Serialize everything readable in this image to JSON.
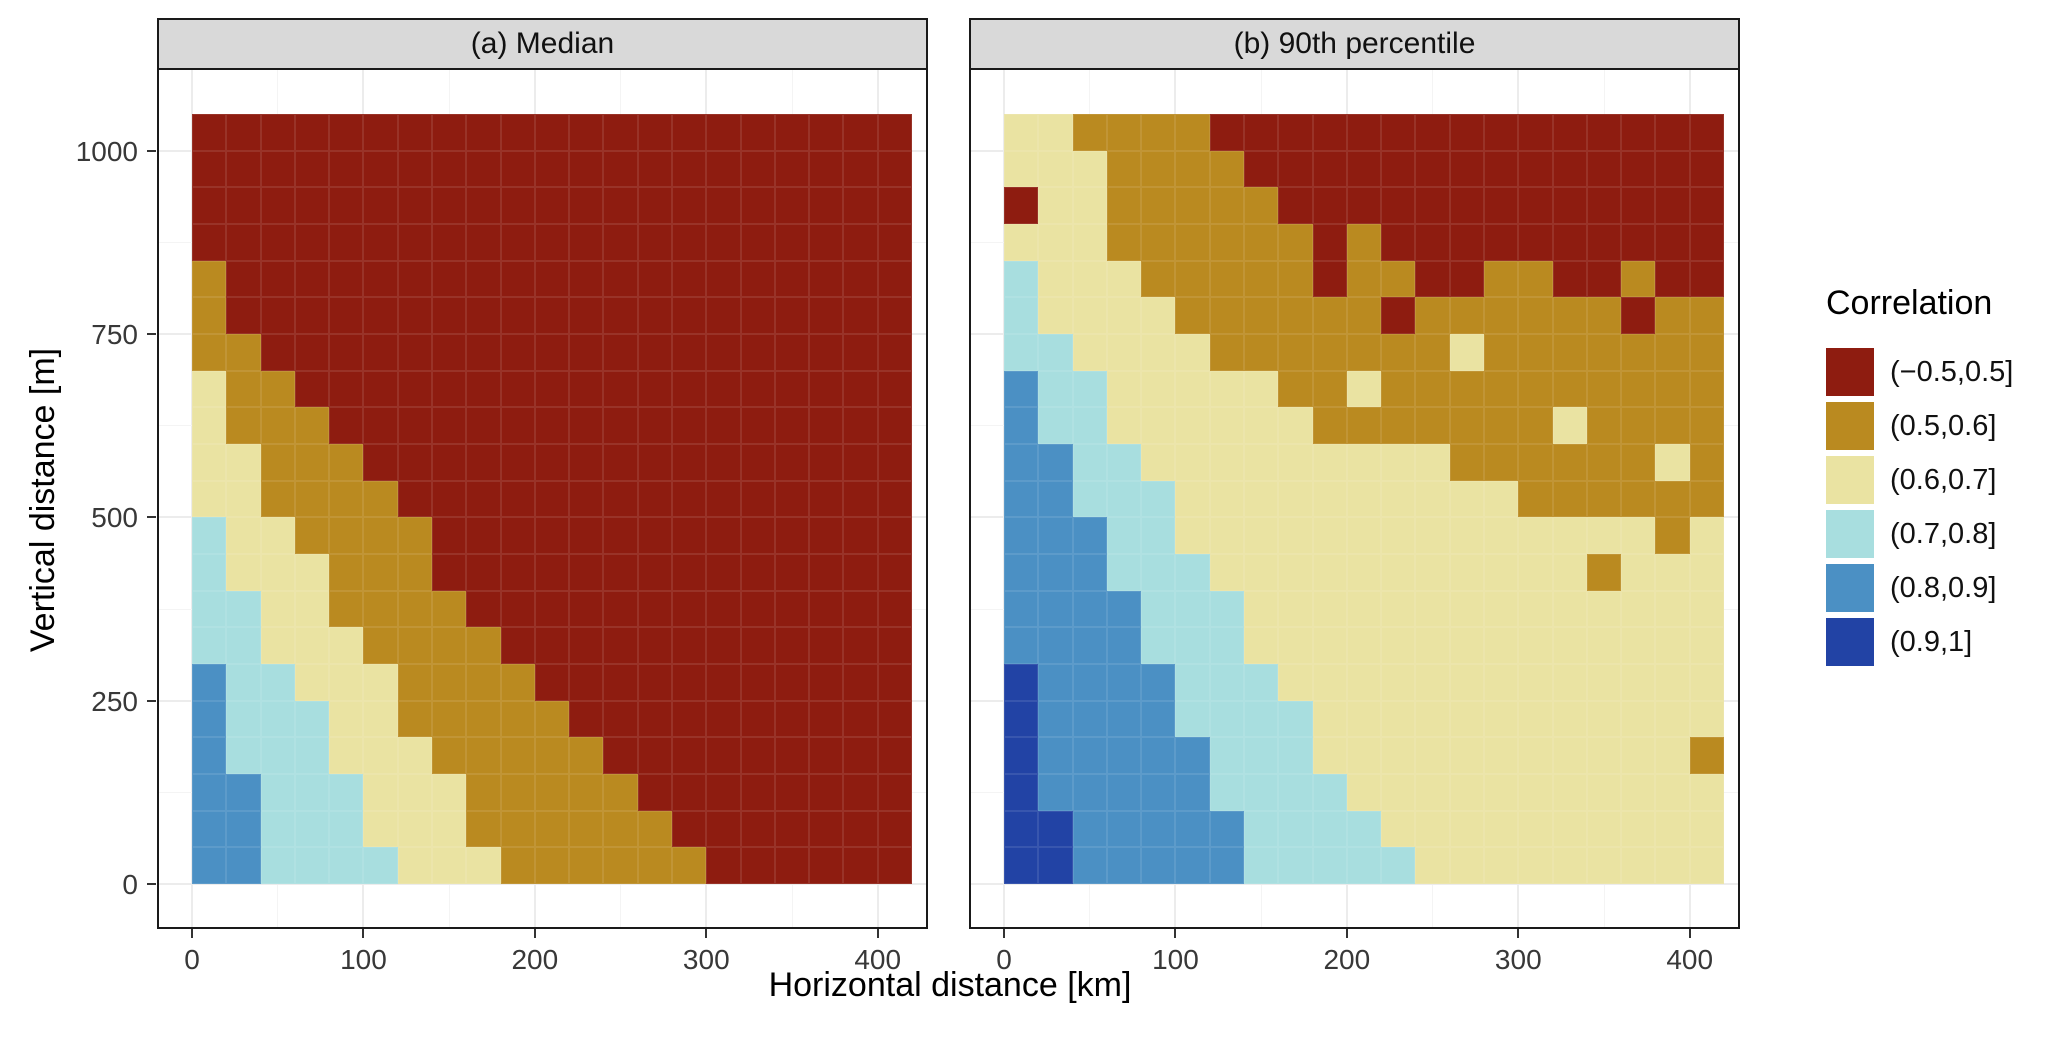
{
  "chart_data": {
    "type": "heatmap",
    "title": "",
    "x": {
      "label": "Horizontal distance [km]",
      "ticks": [
        0,
        100,
        200,
        300,
        400
      ],
      "minor_ticks": [
        50,
        150,
        250,
        350
      ],
      "range": [
        0,
        420
      ],
      "bin_width_km": 20
    },
    "y": {
      "label": "Vertical distance [m]",
      "ticks": [
        0,
        250,
        500,
        750,
        1000
      ],
      "minor_ticks": [
        125,
        375,
        625,
        875
      ],
      "range": [
        0,
        1050
      ],
      "bin_height_m": 50
    },
    "legend": {
      "title": "Correlation",
      "position": "right",
      "bins": [
        {
          "label": "(−0.5,0.5]",
          "color": "#8E1C10"
        },
        {
          "label": "(0.5,0.6]",
          "color": "#BA8A20"
        },
        {
          "label": "(0.6,0.7]",
          "color": "#EAE3A2"
        },
        {
          "label": "(0.7,0.8]",
          "color": "#A8DEDF"
        },
        {
          "label": "(0.8,0.9]",
          "color": "#4B90C4"
        },
        {
          "label": "(0.9,1]",
          "color": "#2243A5"
        }
      ]
    },
    "encoding_note": "Each facet grid is 21 columns (x bins of 20 km, 0-420) by 21 rows (y bins of 50 m, 0-1050). Row strings are listed bottom (0 m) to top (1050 m); each character is the legend bin index 0-5 for that tile.",
    "facets": [
      {
        "title": "(a) Median",
        "grid_rows_bottom_to_top": [
          "443333222111111000000",
          "443332221111110000000",
          "443332221111100000000",
          "433322211111000000000",
          "433322111110000000000",
          "433222111100000000000",
          "332221111000000000000",
          "332211110000000000000",
          "322211100000000000000",
          "322111100000000000000",
          "221111000000000000000",
          "221110000000000000000",
          "211100000000000000000",
          "211000000000000000000",
          "110000000000000000000",
          "100000000000000000000",
          "100000000000000000000",
          "000000000000000000000",
          "000000000000000000000",
          "000000000000000000000",
          "000000000000000000000"
        ]
      },
      {
        "title": "(b) 90th percentile",
        "grid_rows_bottom_to_top": [
          "554444433333222222222",
          "554444433332222222222",
          "544444333322222222222",
          "544444333222222222221",
          "544443333222222222222",
          "544443332222222222222",
          "444433322222222222222",
          "444433322222222222222",
          "444333222222222221222",
          "444332222222222222212",
          "443332222222222111111",
          "443322222222211111121",
          "433222222111111121111",
          "433222221121111111111",
          "332222111111121111111",
          "322221111110111111011",
          "322211111011001100100",
          "222111111010000000000",
          "022111110000000000000",
          "222111100000000000000",
          "221111000000000000000"
        ]
      }
    ]
  }
}
